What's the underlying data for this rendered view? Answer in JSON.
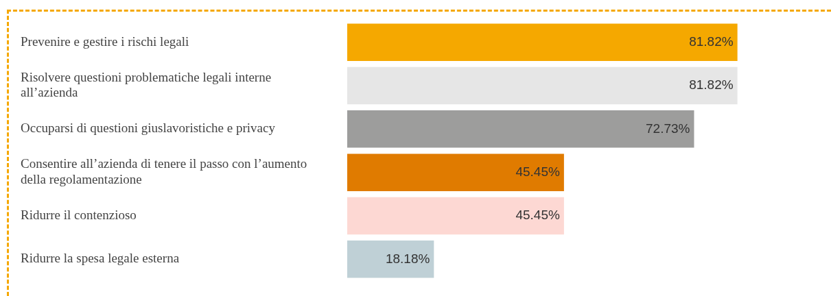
{
  "chart_data": {
    "type": "bar",
    "orientation": "horizontal",
    "categories": [
      "Prevenire e gestire i rischi legali",
      "Risolvere questioni problematiche legali interne all’azienda",
      "Occuparsi di questioni giuslavoristiche e privacy",
      "Consentire all’azienda di tenere il passo con l’aumento della regolamentazione",
      "Ridurre il contenzioso",
      "Ridurre la spesa legale esterna"
    ],
    "values": [
      81.82,
      81.82,
      72.73,
      45.45,
      45.45,
      18.18
    ],
    "colors": [
      "#f5a800",
      "#e6e6e6",
      "#9d9d9c",
      "#e07b00",
      "#fdd8d3",
      "#bfd0d6"
    ],
    "value_labels": [
      "81.82%",
      "81.82%",
      "72.73%",
      "45.45%",
      "45.45%",
      "18.18%"
    ],
    "tick_labels": "y",
    "legend": false
  }
}
